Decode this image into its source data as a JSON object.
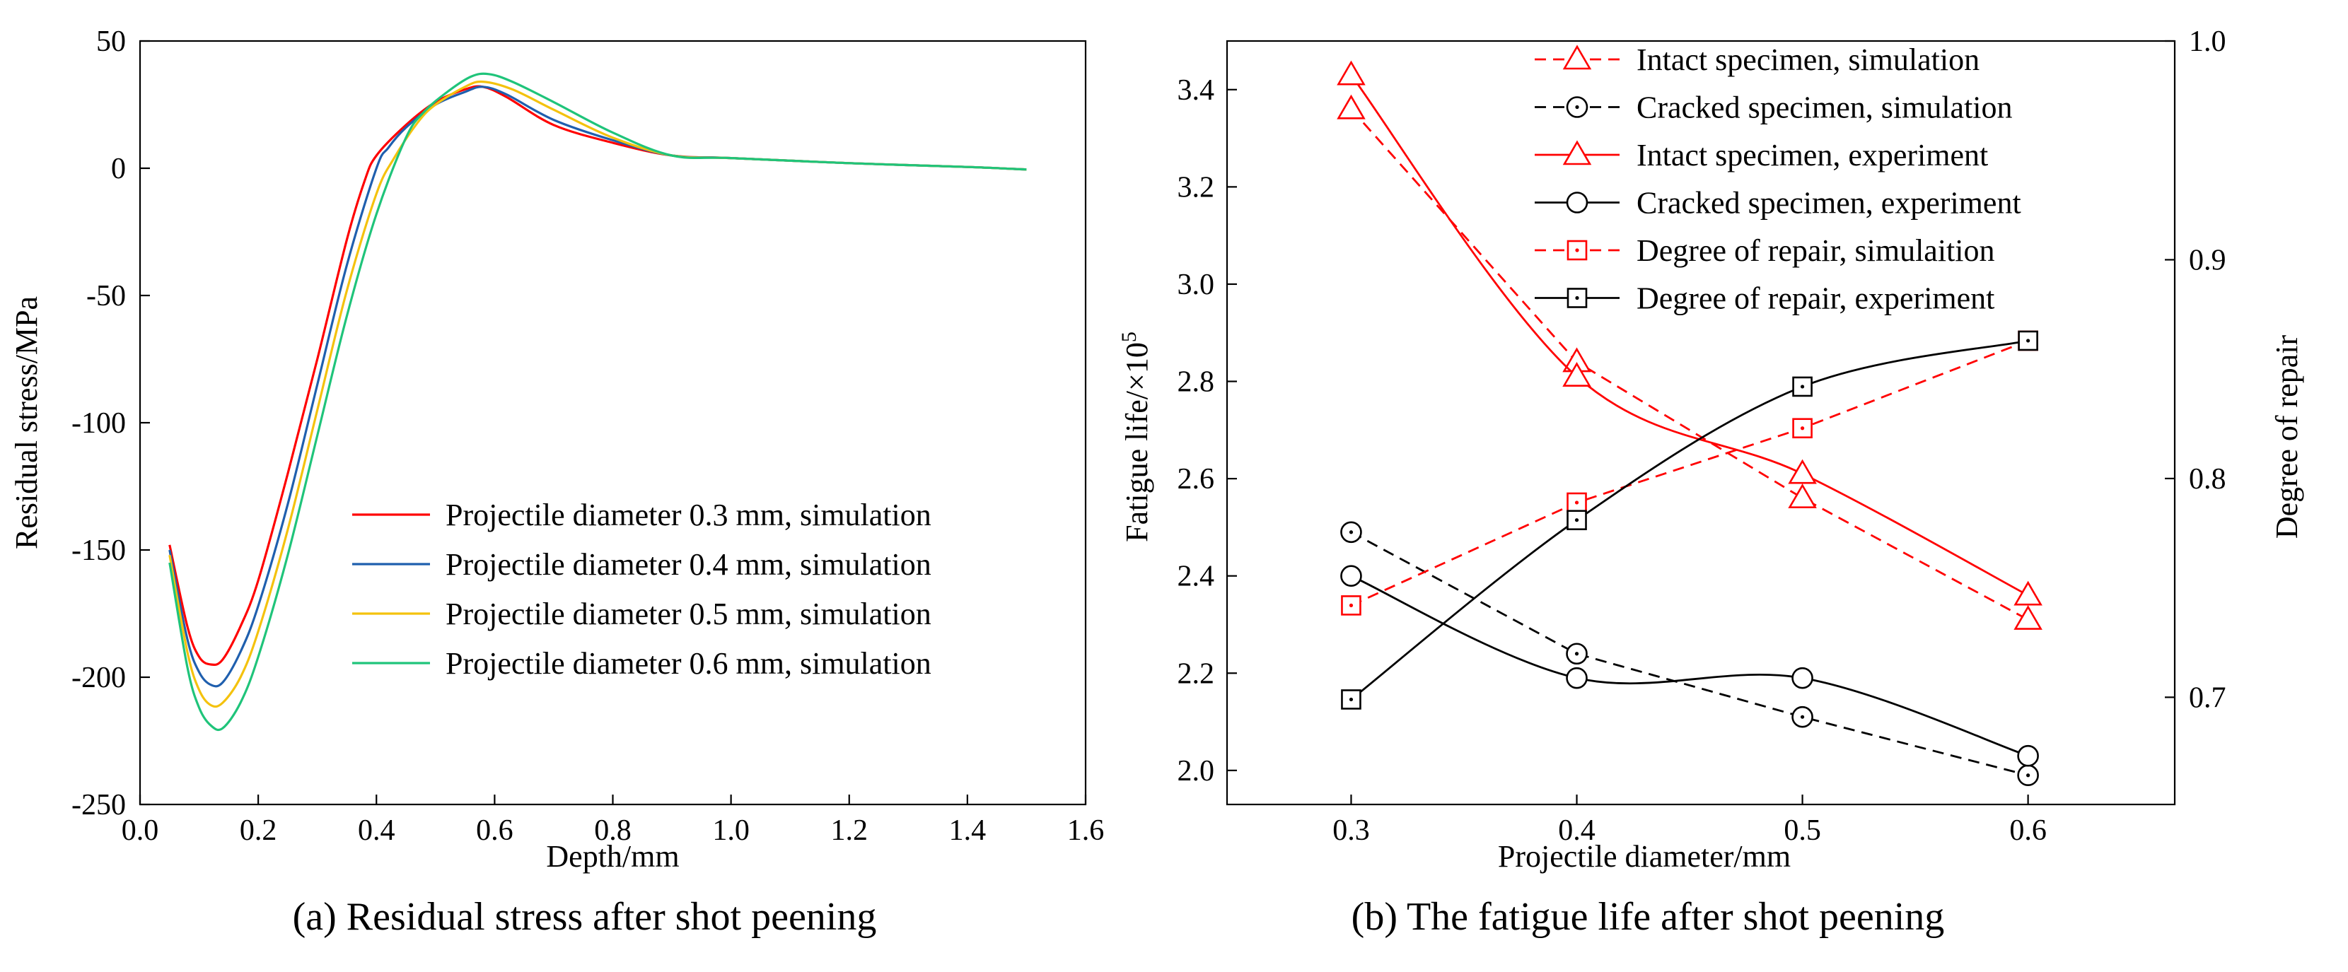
{
  "colors": {
    "sim_03": "#ff0000",
    "sim_04": "#1f5fae",
    "sim_05": "#f4c20d",
    "sim_06": "#1fc47a",
    "red": "#ff0000",
    "black": "#000000"
  },
  "chart_data": [
    {
      "type": "line",
      "caption": "(a) Residual stress after shot peening",
      "xlabel": "Depth/mm",
      "ylabel": "Residual stress/MPa",
      "xlim": [
        0.0,
        1.6
      ],
      "ylim": [
        -250,
        50
      ],
      "xticks": [
        "0.0",
        "0.2",
        "0.4",
        "0.6",
        "0.8",
        "1.0",
        "1.2",
        "1.4",
        "1.6"
      ],
      "yticks": [
        "50",
        "0",
        "-50",
        "-100",
        "-150",
        "-200",
        "-250"
      ],
      "legend_position": "center-right",
      "series": [
        {
          "name": "Projectile diameter 0.3 mm, simulation",
          "color_key": "sim_03",
          "x": [
            0.05,
            0.08,
            0.1,
            0.12,
            0.14,
            0.17,
            0.2,
            0.25,
            0.3,
            0.35,
            0.38,
            0.4,
            0.45,
            0.5,
            0.55,
            0.58,
            0.62,
            0.7,
            0.8,
            0.9,
            1.0,
            1.2,
            1.4,
            1.5
          ],
          "y": [
            -148,
            -180,
            -192,
            -195,
            -193,
            -180,
            -162,
            -120,
            -75,
            -28,
            -5,
            5,
            17,
            26,
            31,
            32,
            28,
            17,
            10,
            5,
            4,
            2,
            0.5,
            -0.5
          ]
        },
        {
          "name": "Projectile diameter 0.4 mm, simulation",
          "color_key": "sim_04",
          "x": [
            0.05,
            0.08,
            0.1,
            0.12,
            0.14,
            0.17,
            0.2,
            0.25,
            0.3,
            0.35,
            0.4,
            0.42,
            0.45,
            0.5,
            0.55,
            0.58,
            0.62,
            0.7,
            0.8,
            0.9,
            1.0,
            1.2,
            1.4,
            1.5
          ],
          "y": [
            -150,
            -185,
            -198,
            -203,
            -202,
            -190,
            -172,
            -132,
            -85,
            -38,
            0,
            8,
            16,
            25,
            30,
            32,
            29,
            19,
            11,
            5,
            4,
            2,
            0.5,
            -0.5
          ]
        },
        {
          "name": "Projectile diameter 0.5 mm, simulation",
          "color_key": "sim_05",
          "x": [
            0.05,
            0.08,
            0.1,
            0.12,
            0.14,
            0.17,
            0.2,
            0.25,
            0.3,
            0.35,
            0.4,
            0.43,
            0.47,
            0.5,
            0.55,
            0.58,
            0.63,
            0.7,
            0.8,
            0.9,
            1.0,
            1.2,
            1.4,
            1.5
          ],
          "y": [
            -152,
            -190,
            -205,
            -211,
            -210,
            -200,
            -182,
            -142,
            -95,
            -48,
            -10,
            4,
            18,
            25,
            32,
            34,
            31,
            23,
            12,
            5,
            4,
            2,
            0.5,
            -0.5
          ]
        },
        {
          "name": "Projectile diameter 0.6 mm, simulation",
          "color_key": "sim_06",
          "x": [
            0.05,
            0.08,
            0.1,
            0.12,
            0.14,
            0.17,
            0.2,
            0.25,
            0.3,
            0.35,
            0.4,
            0.45,
            0.48,
            0.52,
            0.56,
            0.59,
            0.63,
            0.7,
            0.8,
            0.9,
            1.0,
            1.2,
            1.4,
            1.5
          ],
          "y": [
            -155,
            -196,
            -212,
            -219,
            -220,
            -210,
            -192,
            -152,
            -105,
            -58,
            -18,
            12,
            22,
            30,
            36,
            37,
            34,
            26,
            14,
            5,
            4,
            2,
            0.5,
            -0.5
          ]
        }
      ]
    },
    {
      "type": "line",
      "caption": "(b) The fatigue life after shot peening",
      "xlabel": "Projectile diameter/mm",
      "ylabel_left": "Fatigue life/×10",
      "ylabel_left_sup": "5",
      "ylabel_right": "Degree of repair",
      "categories": [
        "0.3",
        "0.4",
        "0.5",
        "0.6"
      ],
      "x": [
        0.3,
        0.4,
        0.5,
        0.6
      ],
      "xlim": [
        0.245,
        0.665
      ],
      "ylim_left": [
        1.93,
        3.5
      ],
      "ylim_right": [
        0.651,
        1.0
      ],
      "yticks_left": [
        "2.0",
        "2.2",
        "2.4",
        "2.6",
        "2.8",
        "3.0",
        "3.2",
        "3.4"
      ],
      "yticks_right": [
        "0.7",
        "0.8",
        "0.9",
        "1.0"
      ],
      "legend_position": "top-center",
      "series": [
        {
          "name": "Intact specimen, simulation",
          "axis": "left",
          "color_key": "red",
          "style": "dashed",
          "marker": "triangle",
          "values": [
            3.36,
            2.84,
            2.56,
            2.31
          ]
        },
        {
          "name": "Cracked specimen, simulation",
          "axis": "left",
          "color_key": "black",
          "style": "dashed",
          "marker": "circle-dot",
          "values": [
            2.49,
            2.24,
            2.11,
            1.99
          ]
        },
        {
          "name": "Intact specimen, experiment",
          "axis": "left",
          "color_key": "red",
          "style": "solid",
          "marker": "triangle",
          "values": [
            3.43,
            2.81,
            2.61,
            2.36
          ]
        },
        {
          "name": "Cracked specimen, experiment",
          "axis": "left",
          "color_key": "black",
          "style": "solid",
          "marker": "circle",
          "values": [
            2.4,
            2.19,
            2.19,
            2.03
          ]
        },
        {
          "name": "Degree of repair, simulaition",
          "axis": "right",
          "color_key": "red",
          "style": "dashed",
          "marker": "square-dot",
          "values": [
            0.742,
            0.789,
            0.823,
            0.863
          ]
        },
        {
          "name": "Degree of repair, experiment",
          "axis": "right",
          "color_key": "black",
          "style": "solid",
          "marker": "square-dot",
          "values": [
            0.699,
            0.781,
            0.842,
            0.863
          ]
        }
      ]
    }
  ]
}
